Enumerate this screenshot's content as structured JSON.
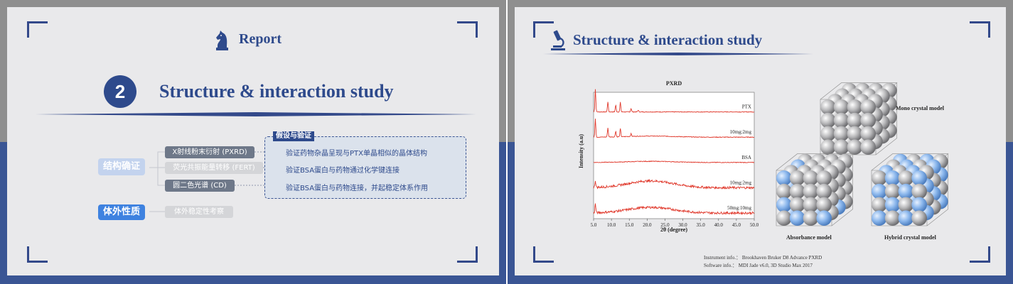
{
  "left_slide": {
    "header_title": "Report",
    "section_number": "2",
    "section_title": "Structure & interaction study",
    "mindmap": {
      "category_structure": "结构确证",
      "category_invitro": "体外性质",
      "methods": [
        "X射线粉末衍射 (PXRD)",
        "荧光共振能量转移 (FERT)",
        "圆二色光谱 (CD)",
        "体外稳定性考察"
      ],
      "results_label": "假设与验证",
      "results": [
        "验证药物杂晶呈现与PTX单晶相似的晶体结构",
        "验证BSA蛋白与药物通过化学键连接",
        "验证BSA蛋白与药物连接，并起稳定体系作用"
      ]
    },
    "colors": {
      "navy": "#2e4a8c",
      "band": "#3a5594",
      "accent_blue": "#3e82e0"
    }
  },
  "right_slide": {
    "header_title": "Structure & interaction study",
    "chart_data": {
      "type": "line",
      "title": "PXRD",
      "xlabel": "2θ (degree)",
      "ylabel": "Intensity (a.u)",
      "xlim": [
        5.0,
        50.0
      ],
      "x_ticks": [
        "5.0",
        "10.0",
        "15.0",
        "20.0",
        "25.0",
        "30.0",
        "35.0",
        "40.0",
        "45.0",
        "50.0"
      ],
      "series_color": "#e0392c",
      "series": [
        {
          "name": "PTX",
          "peaks": [
            [
              5.5,
              1.0
            ],
            [
              9.0,
              0.45
            ],
            [
              11.2,
              0.3
            ],
            [
              12.5,
              0.42
            ],
            [
              15.5,
              0.15
            ],
            [
              17.5,
              0.08
            ]
          ],
          "noise": 0.03,
          "hump": 0.0
        },
        {
          "name": "10mg:2mg",
          "peaks": [
            [
              5.5,
              0.8
            ],
            [
              9.0,
              0.4
            ],
            [
              11.2,
              0.25
            ],
            [
              12.5,
              0.35
            ],
            [
              15.5,
              0.12
            ]
          ],
          "noise": 0.03,
          "hump": 0.05
        },
        {
          "name": "BSA",
          "peaks": [],
          "noise": 0.03,
          "hump": 0.05
        },
        {
          "name": "10mg:2mg",
          "peaks": [
            [
              5.5,
              0.3
            ]
          ],
          "noise": 0.1,
          "hump": 0.3
        },
        {
          "name": "50mg:10mg",
          "peaks": [
            [
              5.5,
              0.4
            ]
          ],
          "noise": 0.1,
          "hump": 0.25
        }
      ]
    },
    "models": {
      "mono": "Mono crystal model",
      "absorbance": "Absorbance model",
      "hybrid": "Hybrid crystal model"
    },
    "footer": {
      "instrument": "Instrument info.： Brookhaven Bruker D8 Advance PXRD",
      "software": "Software info.： MDI Jade v6.0, 3D Studio Max 2017"
    }
  }
}
